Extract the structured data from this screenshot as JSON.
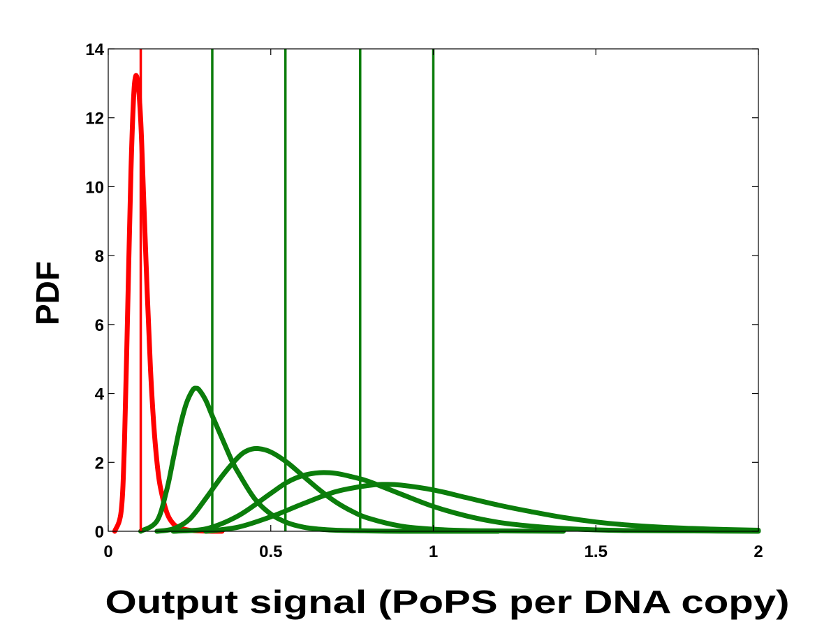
{
  "chart_data": {
    "type": "line",
    "title": "",
    "xlabel": "Output signal (PoPS per DNA copy)",
    "ylabel": "PDF",
    "xlim": [
      0,
      2
    ],
    "ylim": [
      0,
      14
    ],
    "xticks": [
      0,
      0.5,
      1,
      1.5,
      2
    ],
    "xtick_labels": [
      "0",
      "0.5",
      "1",
      "1.5",
      "2"
    ],
    "yticks": [
      0,
      2,
      4,
      6,
      8,
      10,
      12,
      14
    ],
    "ytick_labels": [
      "0",
      "2",
      "4",
      "6",
      "8",
      "10",
      "12",
      "14"
    ],
    "grid": false,
    "legend": "none",
    "colors": {
      "red": "#ff0000",
      "green": "#0b7d0b"
    },
    "series": [
      {
        "color": "red",
        "x": [
          0.02,
          0.04,
          0.05,
          0.06,
          0.07,
          0.08,
          0.09,
          0.1,
          0.11,
          0.12,
          0.13,
          0.14,
          0.15,
          0.16,
          0.18,
          0.2,
          0.22,
          0.25,
          0.28,
          0.32,
          0.35
        ],
        "y": [
          0,
          0.6,
          2.6,
          6.5,
          10.5,
          12.9,
          13.1,
          11.9,
          9.4,
          6.9,
          4.7,
          3.1,
          2.0,
          1.3,
          0.55,
          0.22,
          0.1,
          0.03,
          0.01,
          0,
          0
        ]
      },
      {
        "color": "green",
        "x": [
          0.1,
          0.15,
          0.18,
          0.2,
          0.22,
          0.24,
          0.26,
          0.27,
          0.28,
          0.3,
          0.32,
          0.35,
          0.38,
          0.4,
          0.45,
          0.5,
          0.55,
          0.6,
          0.65,
          0.7,
          0.8,
          0.9,
          1.0,
          1.2
        ],
        "y": [
          0,
          0.3,
          1.2,
          2.1,
          3.0,
          3.7,
          4.1,
          4.15,
          4.1,
          3.8,
          3.35,
          2.7,
          2.05,
          1.7,
          0.95,
          0.5,
          0.25,
          0.12,
          0.06,
          0.03,
          0.01,
          0,
          0,
          0
        ]
      },
      {
        "color": "green",
        "x": [
          0.15,
          0.2,
          0.25,
          0.3,
          0.35,
          0.4,
          0.43,
          0.46,
          0.5,
          0.55,
          0.6,
          0.65,
          0.7,
          0.75,
          0.8,
          0.9,
          1.0,
          1.1,
          1.2,
          1.4
        ],
        "y": [
          0,
          0.07,
          0.35,
          0.95,
          1.6,
          2.15,
          2.35,
          2.4,
          2.3,
          2.0,
          1.6,
          1.2,
          0.85,
          0.58,
          0.38,
          0.15,
          0.06,
          0.02,
          0.01,
          0
        ]
      },
      {
        "color": "green",
        "x": [
          0.2,
          0.3,
          0.4,
          0.5,
          0.55,
          0.6,
          0.65,
          0.7,
          0.75,
          0.8,
          0.9,
          1.0,
          1.1,
          1.2,
          1.3,
          1.4,
          1.5,
          1.6,
          1.8,
          2.0
        ],
        "y": [
          0,
          0.07,
          0.45,
          1.1,
          1.42,
          1.62,
          1.7,
          1.68,
          1.58,
          1.45,
          1.08,
          0.72,
          0.45,
          0.26,
          0.15,
          0.08,
          0.04,
          0.02,
          0.01,
          0
        ]
      },
      {
        "color": "green",
        "x": [
          0.3,
          0.4,
          0.5,
          0.6,
          0.7,
          0.8,
          0.85,
          0.9,
          1.0,
          1.1,
          1.2,
          1.3,
          1.4,
          1.5,
          1.6,
          1.7,
          1.8,
          1.9,
          2.0
        ],
        "y": [
          0,
          0.12,
          0.42,
          0.8,
          1.15,
          1.33,
          1.36,
          1.34,
          1.2,
          0.98,
          0.76,
          0.57,
          0.4,
          0.27,
          0.18,
          0.12,
          0.08,
          0.05,
          0.03
        ]
      }
    ],
    "vertical_lines": [
      {
        "x": 0.1,
        "color": "red"
      },
      {
        "x": 0.32,
        "color": "green"
      },
      {
        "x": 0.545,
        "color": "green"
      },
      {
        "x": 0.775,
        "color": "green"
      },
      {
        "x": 1.0,
        "color": "green"
      }
    ]
  }
}
